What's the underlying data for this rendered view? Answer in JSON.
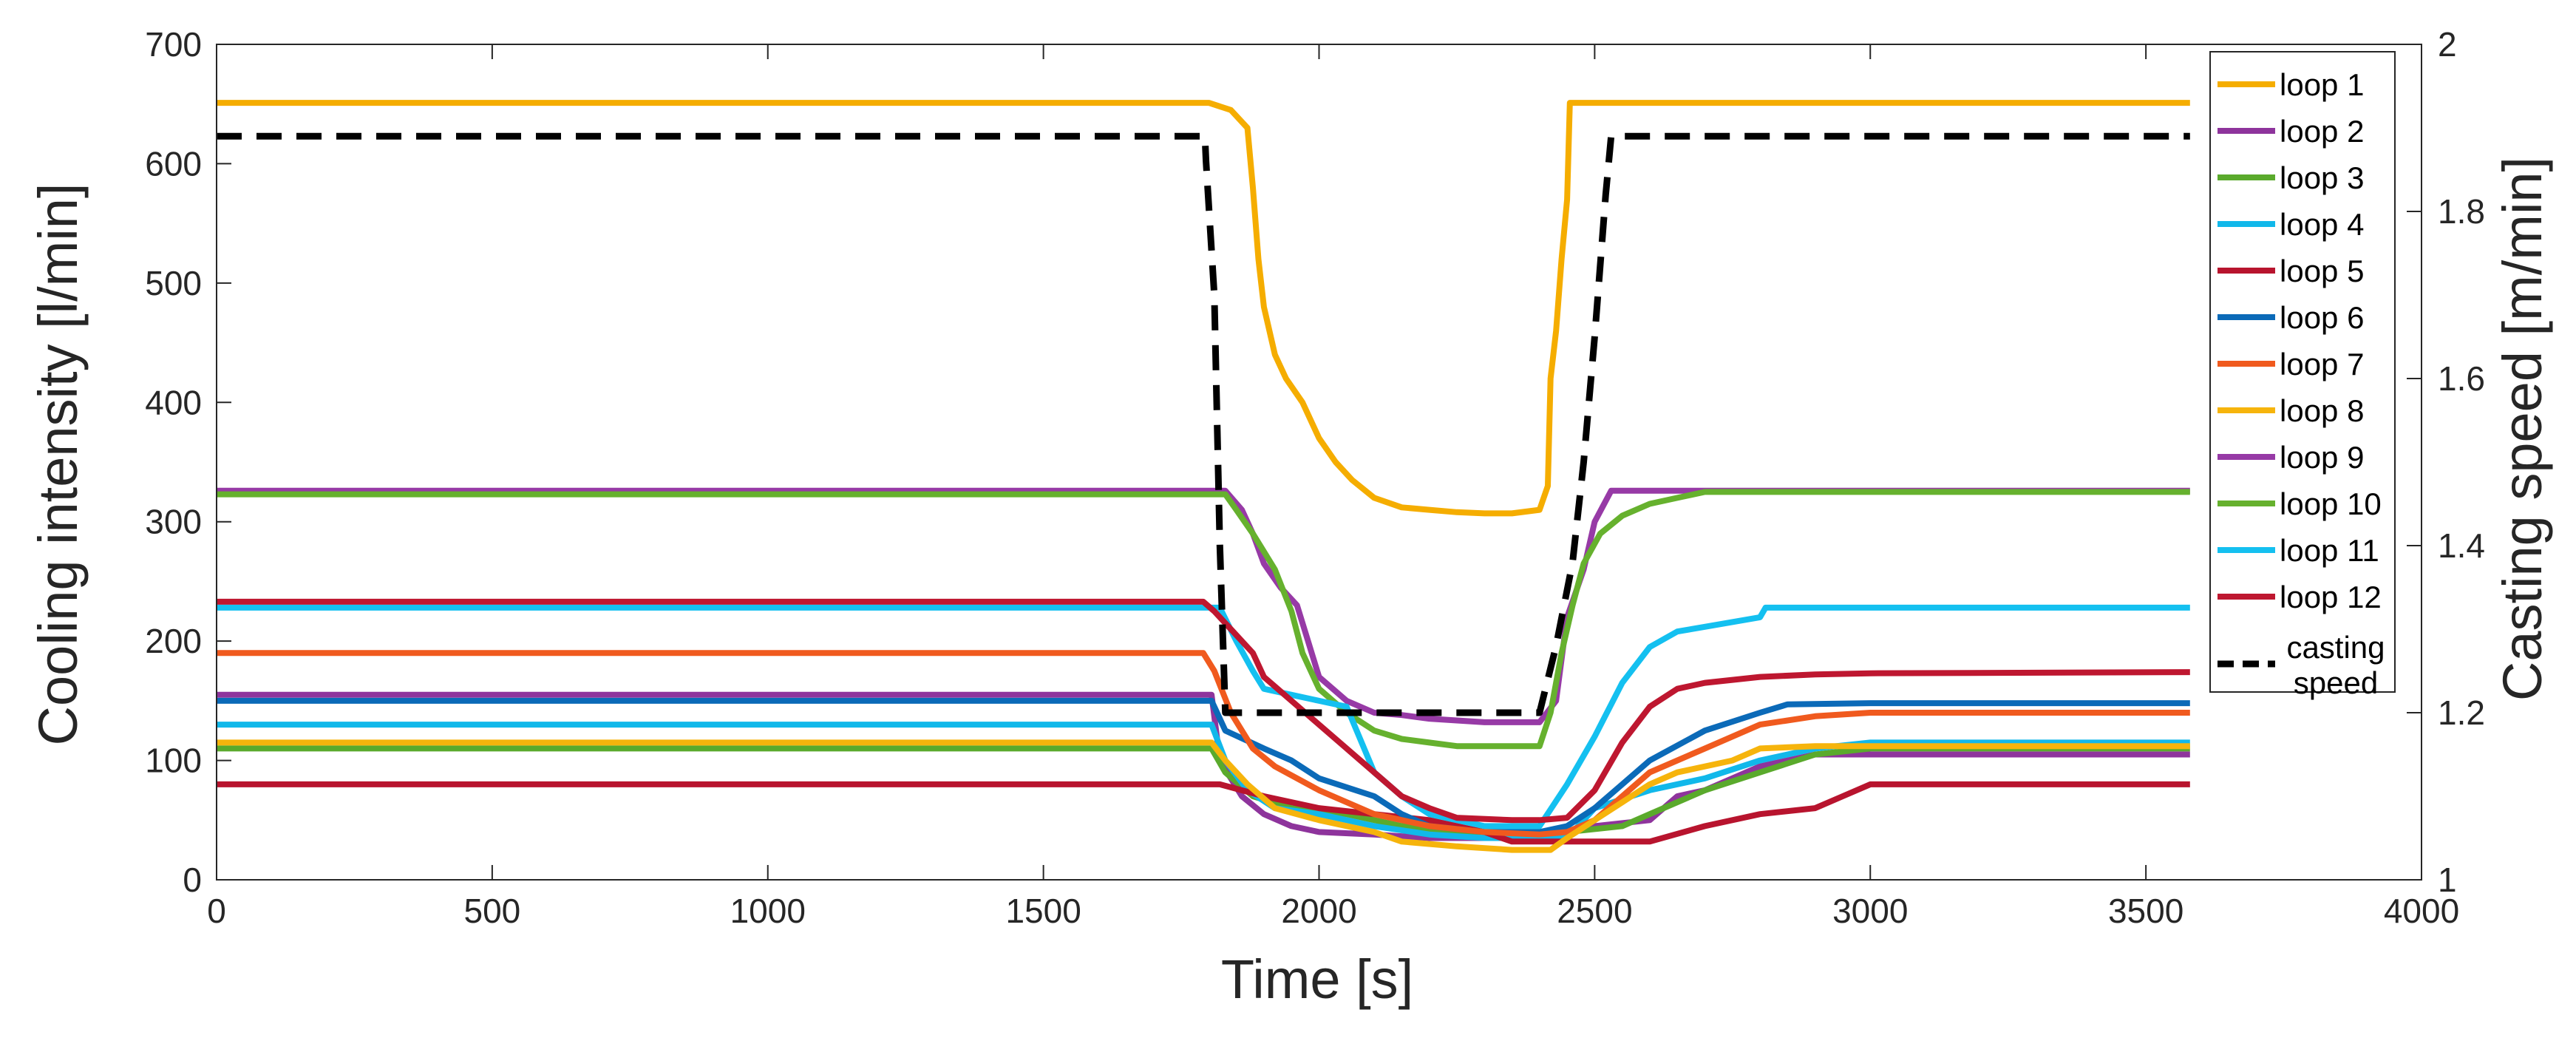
{
  "chart_data": {
    "type": "line",
    "xlabel": "Time [s]",
    "ylabel_left": "Cooling intensity [l/min]",
    "ylabel_right": "Casting speed [m/min]",
    "xlim": [
      0,
      4000
    ],
    "ylim_left": [
      0,
      700
    ],
    "ylim_right": [
      1,
      2
    ],
    "grid": false,
    "legend_position": "top-right",
    "x_ticks": [
      "0",
      "500",
      "1000",
      "1500",
      "2000",
      "2500",
      "3000",
      "3500",
      "4000"
    ],
    "y_left_ticks": [
      "0",
      "100",
      "200",
      "300",
      "400",
      "500",
      "600",
      "700"
    ],
    "y_right_ticks": [
      "1",
      "1.2",
      "1.4",
      "1.6",
      "1.8",
      "2"
    ],
    "series": [
      {
        "name": "loop 1",
        "color": "#f5ad00",
        "axis": "left",
        "dash": false,
        "points": [
          [
            0,
            651
          ],
          [
            1800,
            651
          ],
          [
            1840,
            645
          ],
          [
            1870,
            630
          ],
          [
            1880,
            580
          ],
          [
            1890,
            520
          ],
          [
            1900,
            480
          ],
          [
            1920,
            440
          ],
          [
            1940,
            420
          ],
          [
            1970,
            400
          ],
          [
            2000,
            370
          ],
          [
            2030,
            350
          ],
          [
            2060,
            335
          ],
          [
            2100,
            320
          ],
          [
            2150,
            312
          ],
          [
            2200,
            310
          ],
          [
            2250,
            308
          ],
          [
            2300,
            307
          ],
          [
            2350,
            307
          ],
          [
            2400,
            310
          ],
          [
            2415,
            330
          ],
          [
            2420,
            420
          ],
          [
            2430,
            460
          ],
          [
            2440,
            520
          ],
          [
            2450,
            570
          ],
          [
            2455,
            651
          ],
          [
            3580,
            651
          ]
        ]
      },
      {
        "name": "loop 2",
        "color": "#8e349c",
        "axis": "left",
        "dash": false,
        "points": [
          [
            0,
            155
          ],
          [
            1805,
            155
          ],
          [
            1820,
            100
          ],
          [
            1860,
            70
          ],
          [
            1900,
            55
          ],
          [
            1950,
            45
          ],
          [
            2000,
            40
          ],
          [
            2100,
            38
          ],
          [
            2200,
            35
          ],
          [
            2300,
            35
          ],
          [
            2400,
            35
          ],
          [
            2450,
            40
          ],
          [
            2500,
            45
          ],
          [
            2600,
            50
          ],
          [
            2650,
            70
          ],
          [
            2700,
            75
          ],
          [
            2800,
            95
          ],
          [
            2900,
            105
          ],
          [
            3000,
            105
          ],
          [
            3580,
            105
          ]
        ]
      },
      {
        "name": "loop 3",
        "color": "#5aaa2c",
        "axis": "left",
        "dash": false,
        "points": [
          [
            0,
            110
          ],
          [
            1805,
            110
          ],
          [
            1830,
            90
          ],
          [
            1880,
            70
          ],
          [
            1950,
            60
          ],
          [
            2050,
            55
          ],
          [
            2150,
            45
          ],
          [
            2250,
            40
          ],
          [
            2350,
            40
          ],
          [
            2450,
            40
          ],
          [
            2550,
            45
          ],
          [
            2600,
            55
          ],
          [
            2700,
            75
          ],
          [
            2800,
            90
          ],
          [
            2900,
            105
          ],
          [
            3000,
            110
          ],
          [
            3580,
            110
          ]
        ]
      },
      {
        "name": "loop 4",
        "color": "#11b8ea",
        "axis": "left",
        "dash": false,
        "points": [
          [
            0,
            130
          ],
          [
            1805,
            130
          ],
          [
            1830,
            100
          ],
          [
            1870,
            75
          ],
          [
            1920,
            60
          ],
          [
            2000,
            55
          ],
          [
            2100,
            45
          ],
          [
            2200,
            38
          ],
          [
            2300,
            35
          ],
          [
            2400,
            35
          ],
          [
            2450,
            35
          ],
          [
            2500,
            60
          ],
          [
            2600,
            75
          ],
          [
            2700,
            85
          ],
          [
            2800,
            100
          ],
          [
            2900,
            110
          ],
          [
            3000,
            115
          ],
          [
            3580,
            115
          ]
        ]
      },
      {
        "name": "loop 5",
        "color": "#b8142e",
        "axis": "left",
        "dash": false,
        "points": [
          [
            0,
            80
          ],
          [
            1820,
            80
          ],
          [
            1900,
            70
          ],
          [
            2000,
            60
          ],
          [
            2100,
            55
          ],
          [
            2200,
            50
          ],
          [
            2300,
            40
          ],
          [
            2350,
            32
          ],
          [
            2500,
            32
          ],
          [
            2600,
            32
          ],
          [
            2700,
            45
          ],
          [
            2800,
            55
          ],
          [
            2900,
            60
          ],
          [
            2950,
            70
          ],
          [
            3000,
            80
          ],
          [
            3580,
            80
          ]
        ]
      },
      {
        "name": "loop 6",
        "color": "#0b6ab8",
        "axis": "left",
        "dash": false,
        "points": [
          [
            0,
            150
          ],
          [
            1805,
            150
          ],
          [
            1830,
            125
          ],
          [
            1900,
            110
          ],
          [
            1950,
            100
          ],
          [
            2000,
            85
          ],
          [
            2100,
            70
          ],
          [
            2150,
            55
          ],
          [
            2200,
            45
          ],
          [
            2300,
            40
          ],
          [
            2400,
            40
          ],
          [
            2450,
            45
          ],
          [
            2500,
            60
          ],
          [
            2550,
            80
          ],
          [
            2600,
            100
          ],
          [
            2700,
            125
          ],
          [
            2800,
            140
          ],
          [
            2850,
            147
          ],
          [
            3000,
            148
          ],
          [
            3580,
            148
          ]
        ]
      },
      {
        "name": "loop 7",
        "color": "#f05a1e",
        "axis": "left",
        "dash": false,
        "points": [
          [
            0,
            190
          ],
          [
            1790,
            190
          ],
          [
            1810,
            175
          ],
          [
            1840,
            140
          ],
          [
            1880,
            110
          ],
          [
            1920,
            95
          ],
          [
            2000,
            75
          ],
          [
            2100,
            55
          ],
          [
            2200,
            45
          ],
          [
            2300,
            40
          ],
          [
            2400,
            38
          ],
          [
            2450,
            40
          ],
          [
            2500,
            50
          ],
          [
            2550,
            70
          ],
          [
            2600,
            90
          ],
          [
            2700,
            110
          ],
          [
            2800,
            130
          ],
          [
            2900,
            137
          ],
          [
            3000,
            140
          ],
          [
            3580,
            140
          ]
        ]
      },
      {
        "name": "loop 8",
        "color": "#f6b40c",
        "axis": "left",
        "dash": false,
        "points": [
          [
            0,
            115
          ],
          [
            1805,
            115
          ],
          [
            1830,
            100
          ],
          [
            1870,
            80
          ],
          [
            1920,
            60
          ],
          [
            2000,
            50
          ],
          [
            2100,
            40
          ],
          [
            2150,
            32
          ],
          [
            2250,
            28
          ],
          [
            2350,
            25
          ],
          [
            2420,
            25
          ],
          [
            2450,
            35
          ],
          [
            2500,
            50
          ],
          [
            2550,
            65
          ],
          [
            2600,
            80
          ],
          [
            2650,
            90
          ],
          [
            2750,
            100
          ],
          [
            2800,
            110
          ],
          [
            2900,
            112
          ],
          [
            3000,
            112
          ],
          [
            3580,
            112
          ]
        ]
      },
      {
        "name": "loop 9",
        "color": "#973aa6",
        "axis": "left",
        "dash": false,
        "points": [
          [
            0,
            326
          ],
          [
            1830,
            326
          ],
          [
            1860,
            310
          ],
          [
            1880,
            290
          ],
          [
            1900,
            265
          ],
          [
            1930,
            245
          ],
          [
            1960,
            230
          ],
          [
            1980,
            200
          ],
          [
            2000,
            170
          ],
          [
            2050,
            150
          ],
          [
            2100,
            140
          ],
          [
            2150,
            138
          ],
          [
            2200,
            135
          ],
          [
            2300,
            132
          ],
          [
            2400,
            132
          ],
          [
            2430,
            150
          ],
          [
            2450,
            220
          ],
          [
            2480,
            260
          ],
          [
            2500,
            300
          ],
          [
            2530,
            326
          ],
          [
            2650,
            326
          ],
          [
            3580,
            326
          ]
        ]
      },
      {
        "name": "loop 10",
        "color": "#66b12e",
        "axis": "left",
        "dash": false,
        "points": [
          [
            0,
            323
          ],
          [
            1830,
            323
          ],
          [
            1850,
            310
          ],
          [
            1880,
            290
          ],
          [
            1920,
            260
          ],
          [
            1950,
            225
          ],
          [
            1970,
            190
          ],
          [
            2000,
            160
          ],
          [
            2050,
            140
          ],
          [
            2100,
            125
          ],
          [
            2150,
            118
          ],
          [
            2200,
            115
          ],
          [
            2250,
            112
          ],
          [
            2300,
            112
          ],
          [
            2400,
            112
          ],
          [
            2420,
            140
          ],
          [
            2440,
            190
          ],
          [
            2460,
            230
          ],
          [
            2480,
            265
          ],
          [
            2510,
            290
          ],
          [
            2550,
            305
          ],
          [
            2600,
            315
          ],
          [
            2650,
            320
          ],
          [
            2700,
            325
          ],
          [
            3580,
            325
          ]
        ]
      },
      {
        "name": "loop 11",
        "color": "#14c0f0",
        "axis": "left",
        "dash": false,
        "points": [
          [
            0,
            228
          ],
          [
            1820,
            228
          ],
          [
            1850,
            200
          ],
          [
            1880,
            175
          ],
          [
            1900,
            160
          ],
          [
            1950,
            155
          ],
          [
            2000,
            150
          ],
          [
            2050,
            145
          ],
          [
            2100,
            90
          ],
          [
            2150,
            70
          ],
          [
            2200,
            55
          ],
          [
            2250,
            50
          ],
          [
            2300,
            45
          ],
          [
            2400,
            45
          ],
          [
            2450,
            80
          ],
          [
            2500,
            120
          ],
          [
            2550,
            165
          ],
          [
            2600,
            195
          ],
          [
            2650,
            208
          ],
          [
            2700,
            212
          ],
          [
            2800,
            220
          ],
          [
            2810,
            228
          ],
          [
            3580,
            228
          ]
        ]
      },
      {
        "name": "loop 12",
        "color": "#be1730",
        "axis": "left",
        "dash": false,
        "points": [
          [
            0,
            233
          ],
          [
            1790,
            233
          ],
          [
            1810,
            225
          ],
          [
            1840,
            210
          ],
          [
            1880,
            190
          ],
          [
            1900,
            170
          ],
          [
            1950,
            150
          ],
          [
            2000,
            130
          ],
          [
            2050,
            110
          ],
          [
            2100,
            90
          ],
          [
            2150,
            70
          ],
          [
            2200,
            60
          ],
          [
            2250,
            52
          ],
          [
            2350,
            50
          ],
          [
            2400,
            50
          ],
          [
            2450,
            52
          ],
          [
            2500,
            75
          ],
          [
            2550,
            115
          ],
          [
            2600,
            145
          ],
          [
            2650,
            160
          ],
          [
            2700,
            165
          ],
          [
            2800,
            170
          ],
          [
            2900,
            172
          ],
          [
            3000,
            173
          ],
          [
            3580,
            174
          ]
        ]
      },
      {
        "name": "casting\nspeed",
        "color": "#000000",
        "axis": "right",
        "dash": true,
        "points": [
          [
            0,
            1.89
          ],
          [
            1793,
            1.89
          ],
          [
            1795,
            1.86
          ],
          [
            1810,
            1.7
          ],
          [
            1820,
            1.4
          ],
          [
            1830,
            1.2
          ],
          [
            2400,
            1.2
          ],
          [
            2430,
            1.28
          ],
          [
            2460,
            1.38
          ],
          [
            2480,
            1.5
          ],
          [
            2500,
            1.65
          ],
          [
            2520,
            1.82
          ],
          [
            2530,
            1.89
          ],
          [
            3580,
            1.89
          ]
        ]
      }
    ]
  }
}
